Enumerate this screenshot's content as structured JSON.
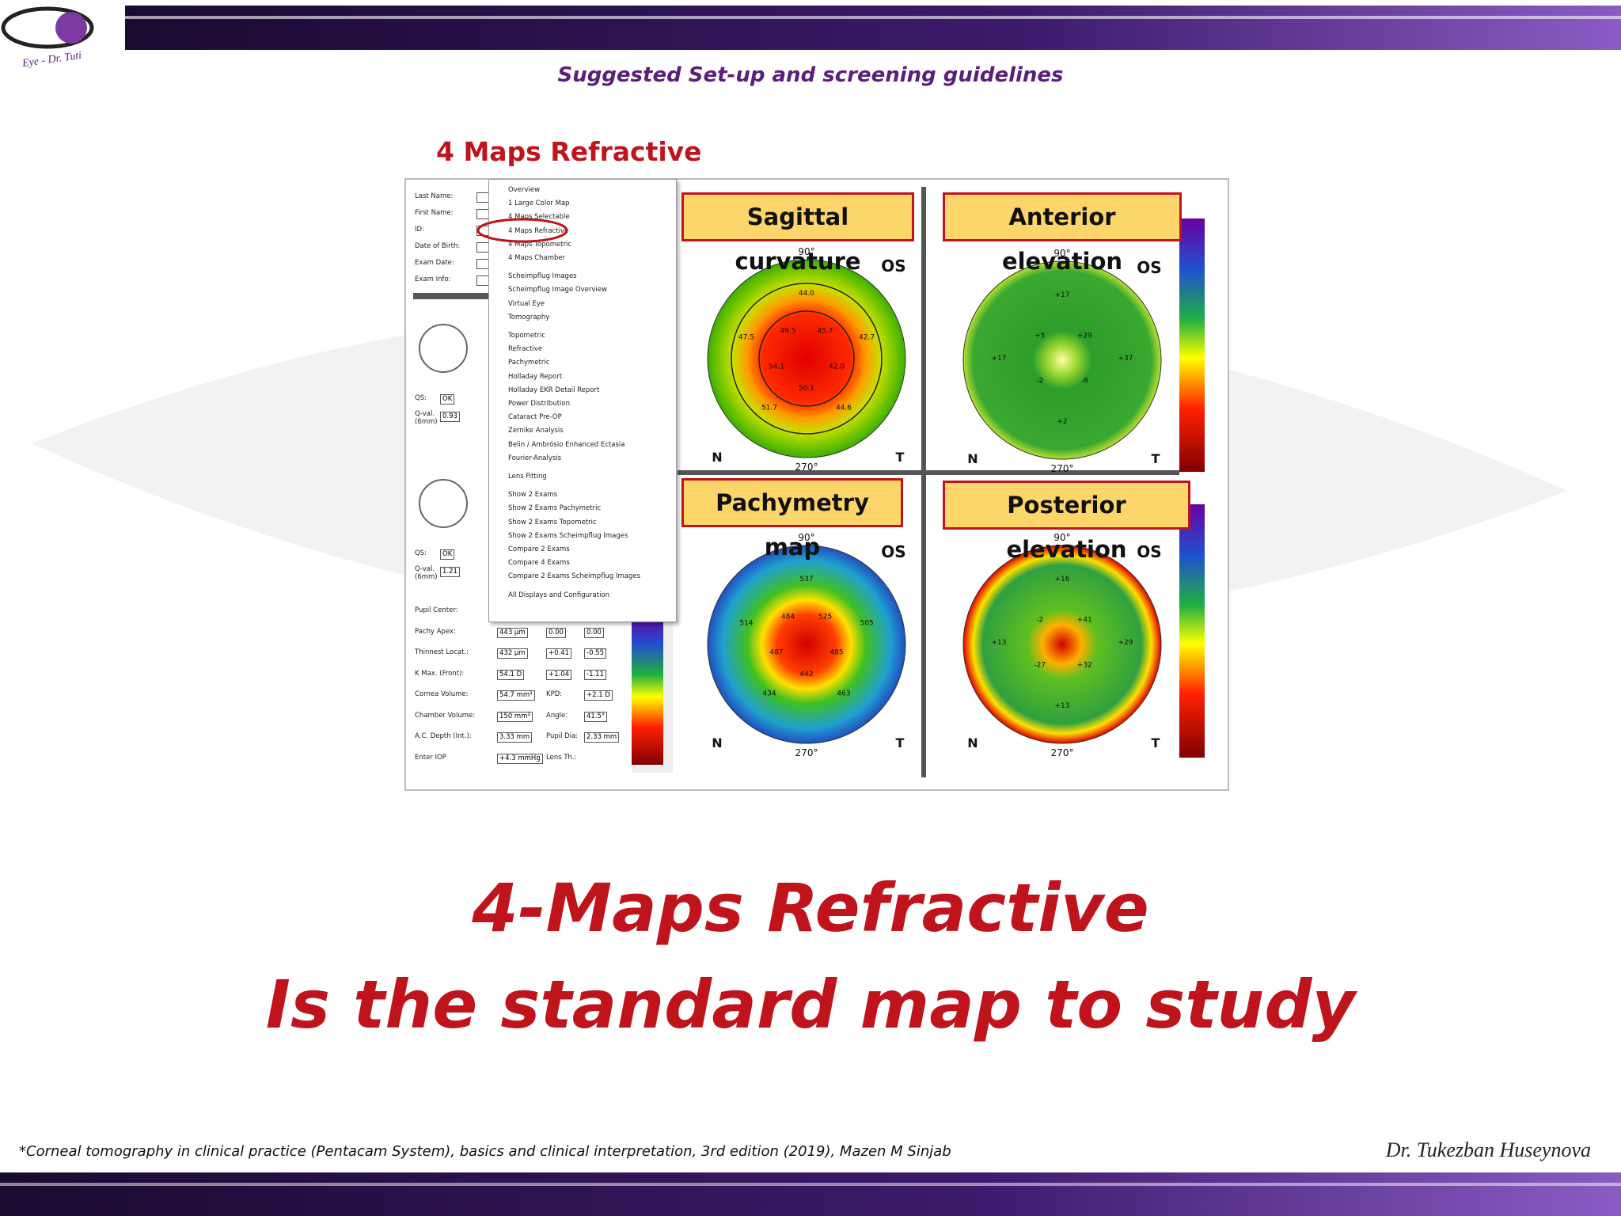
{
  "header": {
    "logo_text": "Eye - Dr. Tuti",
    "subtitle": "Suggested Set-up and screening guidelines"
  },
  "screenshot": {
    "title": "4 Maps Refractive",
    "menu": [
      "Overview",
      "1 Large Color Map",
      "4 Maps Selectable",
      "4 Maps Refractive",
      "4 Maps Topometric",
      "4 Maps Chamber",
      "Scheimpflug Images",
      "Scheimpflug Image Overview",
      "Virtual Eye",
      "Tomography",
      "Topometric",
      "Refractive",
      "Pachymetric",
      "Holladay Report",
      "Holladay EKR Detail Report",
      "Power Distribution",
      "Cataract Pre-OP",
      "Zernike Analysis",
      "Belin / Ambrósio Enhanced Ectasia",
      "Fourier-Analysis",
      "Lens Fitting",
      "Show 2 Exams",
      "Show 2 Exams Pachymetric",
      "Show 2 Exams Topometric",
      "Show 2 Exams Scheimpflug Images",
      "Compare 2 Exams",
      "Compare 4 Exams",
      "Compare 2 Exams Scheimpflug Images",
      "All Displays and Configuration"
    ],
    "patient_fields": [
      "Last Name:",
      "First Name:",
      "ID:",
      "Date of Birth:",
      "Exam Date:",
      "Exam Info:"
    ],
    "eye_blocks": [
      {
        "qs_label": "QS:",
        "qs": "OK",
        "qval_label": "Q-val. (6mm)",
        "qval": "0.93"
      },
      {
        "qs_label": "QS:",
        "qs": "OK",
        "qval_label": "Q-val. (6mm)",
        "qval": "1.21"
      }
    ],
    "measurements": [
      [
        "Pupil Center:",
        "",
        "",
        ""
      ],
      [
        "Pachy Apex:",
        "443 µm",
        "0.00",
        "0.00"
      ],
      [
        "Thinnest Locat.:",
        "432 µm",
        "+0.41",
        "-0.55"
      ],
      [
        "K Max. (Front):",
        "54.1 D",
        "+1.04",
        "-1.11"
      ],
      [
        "Cornea Volume:",
        "54.7 mm³",
        "KPD:",
        "+2.1 D"
      ],
      [
        "Chamber Volume:",
        "150 mm³",
        "Angle:",
        "41.5°"
      ],
      [
        "A.C. Depth (Int.):",
        "3.33 mm",
        "Pupil Dia:",
        "2.33 mm"
      ],
      [
        "Enter IOP",
        "+4.3 mmHg",
        "Lens Th.:",
        ""
      ]
    ],
    "maps": [
      {
        "title": "Sagittal curvature",
        "eye": "OS",
        "nasal": "N",
        "temporal": "T",
        "top": "90°",
        "bottom": "270°",
        "values": [
          "44.0",
          "45.7",
          "42.7",
          "42.0",
          "44.6",
          "50.1",
          "51.7",
          "54.1",
          "47.5",
          "49.5"
        ]
      },
      {
        "title": "Anterior elevation",
        "eye": "OS",
        "nasal": "N",
        "temporal": "T",
        "top": "90°",
        "bottom": "270°",
        "values": [
          "+17",
          "+29",
          "+37",
          "-8",
          "+2",
          "-2",
          "+17",
          "+5"
        ]
      },
      {
        "title": "Pachymetry map",
        "eye": "OS",
        "nasal": "N",
        "temporal": "T",
        "top": "90°",
        "bottom": "270°",
        "values": [
          "537",
          "525",
          "505",
          "485",
          "463",
          "442",
          "434",
          "487",
          "514",
          "484"
        ]
      },
      {
        "title": "Posterior elevation",
        "eye": "OS",
        "nasal": "N",
        "temporal": "T",
        "top": "90°",
        "bottom": "270°",
        "values": [
          "+16",
          "+41",
          "+29",
          "+32",
          "+13",
          "-27",
          "+13",
          "-2"
        ]
      }
    ]
  },
  "main_text": {
    "line1": "4-Maps Refractive",
    "line2": "Is the standard map to study"
  },
  "footer": {
    "citation": "*Corneal tomography in clinical practice (Pentacam System), basics and clinical interpretation, 3rd edition (2019), Mazen M Sinjab",
    "author": "Dr. Tukezban Huseynova"
  }
}
